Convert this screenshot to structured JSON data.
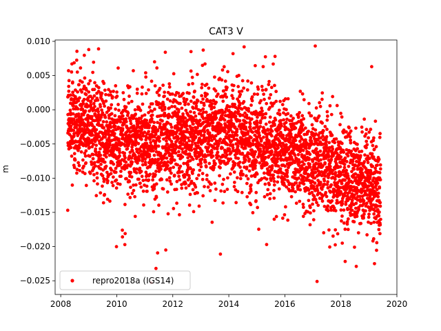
{
  "chart_data": {
    "type": "scatter",
    "title": "CAT3 V",
    "xlabel": "",
    "ylabel": "m",
    "xlim": [
      2007.8,
      2020.0
    ],
    "ylim": [
      -0.027,
      0.0102
    ],
    "xticks": [
      2008,
      2010,
      2012,
      2014,
      2016,
      2018,
      2020
    ],
    "xtick_labels": [
      "2008",
      "2010",
      "2012",
      "2014",
      "2016",
      "2018",
      "2020"
    ],
    "yticks": [
      0.01,
      0.005,
      0.0,
      -0.005,
      -0.01,
      -0.015,
      -0.02,
      -0.025
    ],
    "ytick_labels": [
      "0.010",
      "0.005",
      "0.000",
      "−0.005",
      "−0.010",
      "−0.015",
      "−0.020",
      "−0.025"
    ],
    "grid": false,
    "legend_position": "lower-left",
    "series": [
      {
        "name": "repro2018a (IGS14)",
        "color": "#ff0000",
        "marker": "circle",
        "x_start": 2008.25,
        "x_end": 2019.42,
        "trend": [
          {
            "x": 2008.25,
            "mean": -0.0015,
            "spread": 0.0045
          },
          {
            "x": 2009.0,
            "mean": -0.0025,
            "spread": 0.0045
          },
          {
            "x": 2010.0,
            "mean": -0.0045,
            "spread": 0.0045
          },
          {
            "x": 2011.0,
            "mean": -0.0055,
            "spread": 0.0045
          },
          {
            "x": 2012.0,
            "mean": -0.004,
            "spread": 0.0045
          },
          {
            "x": 2013.0,
            "mean": -0.004,
            "spread": 0.0045
          },
          {
            "x": 2014.0,
            "mean": -0.0035,
            "spread": 0.0045
          },
          {
            "x": 2015.0,
            "mean": -0.005,
            "spread": 0.0045
          },
          {
            "x": 2016.0,
            "mean": -0.006,
            "spread": 0.0045
          },
          {
            "x": 2017.0,
            "mean": -0.0075,
            "spread": 0.0045
          },
          {
            "x": 2018.0,
            "mean": -0.0095,
            "spread": 0.0045
          },
          {
            "x": 2019.0,
            "mean": -0.0105,
            "spread": 0.0045
          },
          {
            "x": 2019.42,
            "mean": -0.0115,
            "spread": 0.0045
          }
        ],
        "outliers": [
          {
            "x": 2009.0,
            "y": 0.0088
          },
          {
            "x": 2009.35,
            "y": 0.0089
          },
          {
            "x": 2011.4,
            "y": -0.0232
          },
          {
            "x": 2011.75,
            "y": -0.0205
          },
          {
            "x": 2012.65,
            "y": 0.0085
          },
          {
            "x": 2013.7,
            "y": -0.0211
          },
          {
            "x": 2014.15,
            "y": 0.0082
          },
          {
            "x": 2015.65,
            "y": 0.0078
          },
          {
            "x": 2017.15,
            "y": -0.0251
          },
          {
            "x": 2018.55,
            "y": -0.0229
          },
          {
            "x": 2019.1,
            "y": 0.0063
          },
          {
            "x": 2019.2,
            "y": -0.0225
          },
          {
            "x": 2010.2,
            "y": -0.0176
          },
          {
            "x": 2010.3,
            "y": -0.0181
          },
          {
            "x": 2015.35,
            "y": -0.0197
          },
          {
            "x": 2018.05,
            "y": -0.0195
          },
          {
            "x": 2008.4,
            "y": 0.0067
          },
          {
            "x": 2010.05,
            "y": 0.0061
          },
          {
            "x": 2013.15,
            "y": 0.0067
          }
        ],
        "n_points": 3900
      }
    ]
  }
}
